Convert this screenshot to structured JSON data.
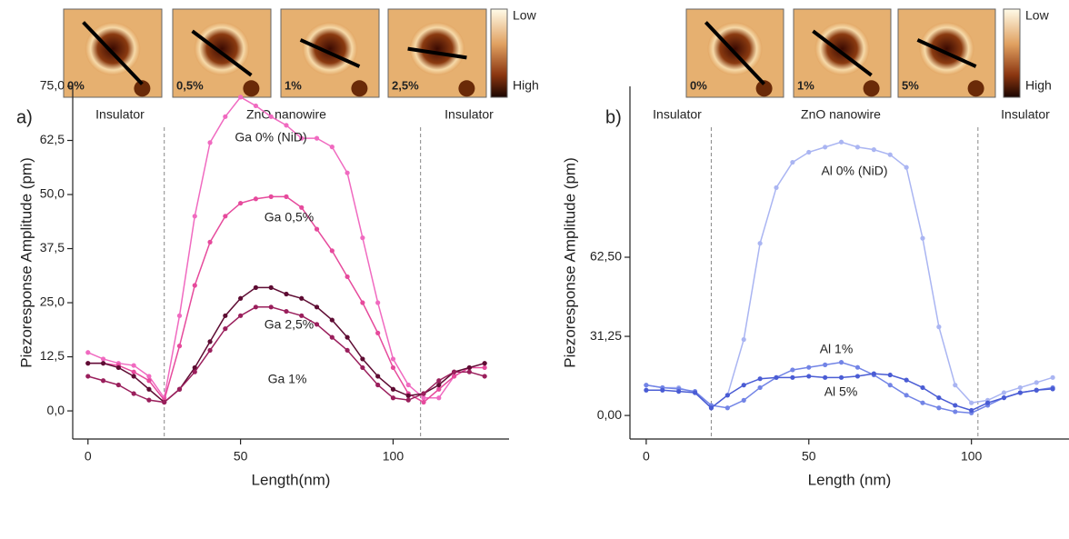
{
  "chart_data": [
    {
      "type": "line",
      "panel_label": "a)",
      "xlabel": "Length(nm)",
      "ylabel": "Piezoresponse Amplitude (pm)",
      "regions": [
        "Insulator",
        "ZnO nanowire",
        "Insulator"
      ],
      "vlines": [
        25,
        109
      ],
      "inset_labels": [
        "0%",
        "0,5%",
        "1%",
        "2,5%"
      ],
      "colorbar": [
        "Low",
        "High"
      ],
      "xlim": [
        -5,
        138
      ],
      "xticks": [
        0,
        50,
        100
      ],
      "ylim": [
        -6.5,
        75
      ],
      "yticks": [
        {
          "value": 0,
          "label": "0,0"
        },
        {
          "value": 12.5,
          "label": "12,5"
        },
        {
          "value": 25,
          "label": "25,0"
        },
        {
          "value": 37.5,
          "label": "37,5"
        },
        {
          "value": 50,
          "label": "50,0"
        },
        {
          "value": 62.5,
          "label": "62,5"
        },
        {
          "value": 75,
          "label": "75,0"
        }
      ],
      "x": [
        0,
        5,
        10,
        15,
        20,
        25,
        30,
        35,
        40,
        45,
        50,
        55,
        60,
        65,
        70,
        75,
        80,
        85,
        90,
        95,
        100,
        105,
        110,
        115,
        120,
        125,
        130
      ],
      "series": [
        {
          "name": "Ga 0% (NiD)",
          "color": "#f06ac0",
          "values": [
            13.5,
            12,
            11,
            10.5,
            8,
            3,
            22,
            45,
            62,
            68,
            72.5,
            70.5,
            68,
            66,
            63,
            63,
            61,
            55,
            40,
            25,
            12,
            6,
            3,
            3,
            8,
            10,
            11
          ]
        },
        {
          "name": "Ga 0,5%",
          "color": "#e64a9c",
          "values": [
            11,
            11,
            10.5,
            9,
            7,
            2.5,
            15,
            29,
            39,
            45,
            48,
            49,
            49.5,
            49.5,
            47,
            42,
            37,
            31,
            25,
            18,
            10,
            4,
            2,
            5,
            8,
            10,
            10
          ]
        },
        {
          "name": "Ga 2,5%",
          "color": "#5e0c33",
          "values": [
            11,
            11,
            10,
            8,
            5,
            2,
            5,
            10,
            16,
            22,
            26,
            28.5,
            28.5,
            27,
            26,
            24,
            21,
            17,
            12,
            8,
            5,
            3.5,
            4,
            6,
            9,
            10,
            11
          ]
        },
        {
          "name": "Ga 1%",
          "color": "#9a1f5c",
          "values": [
            8,
            7,
            6,
            4,
            2.5,
            2,
            5,
            9,
            14,
            19,
            22,
            24,
            24,
            23,
            22,
            20,
            17,
            14,
            10,
            6,
            3,
            2.5,
            4,
            7,
            9,
            9,
            8
          ]
        }
      ]
    },
    {
      "type": "line",
      "panel_label": "b)",
      "xlabel": "Length (nm)",
      "ylabel": "Piezoresponse Amplitude (pm)",
      "regions": [
        "Insulator",
        "ZnO nanowire",
        "Insulator"
      ],
      "vlines": [
        20,
        102
      ],
      "inset_labels": [
        "0%",
        "1%",
        "5%"
      ],
      "colorbar": [
        "Low",
        "High"
      ],
      "xlim": [
        -5,
        130
      ],
      "xticks": [
        0,
        50,
        100
      ],
      "ylim": [
        -9.3,
        130
      ],
      "yticks": [
        {
          "value": 0,
          "label": "0,00"
        },
        {
          "value": 31.25,
          "label": "31,25"
        },
        {
          "value": 62.5,
          "label": "62,50"
        }
      ],
      "x": [
        0,
        5,
        10,
        15,
        20,
        25,
        30,
        35,
        40,
        45,
        50,
        55,
        60,
        65,
        70,
        75,
        80,
        85,
        90,
        95,
        100,
        105,
        110,
        115,
        120,
        125
      ],
      "series": [
        {
          "name": "Al 0% (NiD)",
          "color": "#aab5f2",
          "values": [
            12,
            11,
            11,
            9,
            3,
            8,
            30,
            68,
            90,
            100,
            104,
            106,
            108,
            106,
            105,
            103,
            98,
            70,
            35,
            12,
            5,
            6,
            9,
            11,
            13,
            15
          ]
        },
        {
          "name": "Al 1%",
          "color": "#7284e6",
          "values": [
            12,
            11,
            10.5,
            9.5,
            4,
            3,
            6,
            11,
            15,
            18,
            19,
            20,
            21,
            19,
            16,
            12,
            8,
            5,
            3,
            1.5,
            1,
            4,
            7,
            9,
            10,
            11
          ]
        },
        {
          "name": "Al 5%",
          "color": "#4a5cd4",
          "values": [
            10,
            10,
            9.5,
            9,
            3,
            8,
            12,
            14.5,
            15,
            15,
            15.5,
            15,
            15,
            15.5,
            16.5,
            16,
            14,
            11,
            7,
            4,
            2,
            5,
            7,
            9,
            10,
            10.5
          ]
        }
      ]
    }
  ]
}
